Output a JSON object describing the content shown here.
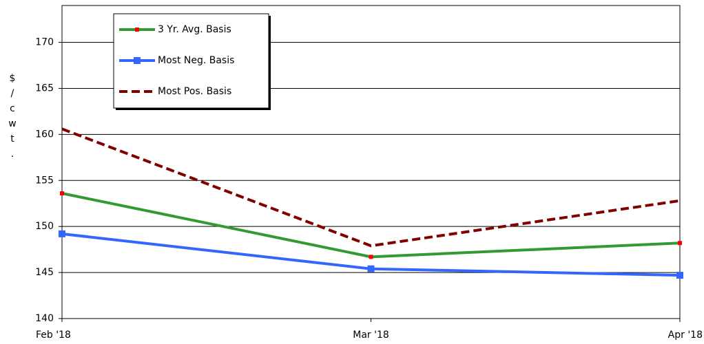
{
  "chart_data": {
    "type": "line",
    "y_label": "$/cwt.",
    "categories": [
      "Feb '18",
      "Mar  '18",
      "Apr '18"
    ],
    "series": [
      {
        "name": "3 Yr. Avg. Basis",
        "color": "#339933",
        "marker": "dot",
        "marker_color": "#ff0000",
        "dashed": false,
        "values": [
          153.6,
          146.7,
          148.2
        ]
      },
      {
        "name": "Most Neg. Basis",
        "color": "#3366ff",
        "marker": "square",
        "marker_color": "#3366ff",
        "dashed": false,
        "values": [
          149.2,
          145.4,
          144.7
        ]
      },
      {
        "name": "Most Pos. Basis",
        "color": "#800000",
        "marker": "none",
        "marker_color": "#800000",
        "dashed": true,
        "values": [
          160.6,
          147.9,
          152.8
        ]
      }
    ],
    "ylim": [
      140,
      174
    ],
    "yticks": [
      140,
      145,
      150,
      155,
      160,
      165,
      170
    ],
    "grid": true,
    "legend": "top-left"
  }
}
